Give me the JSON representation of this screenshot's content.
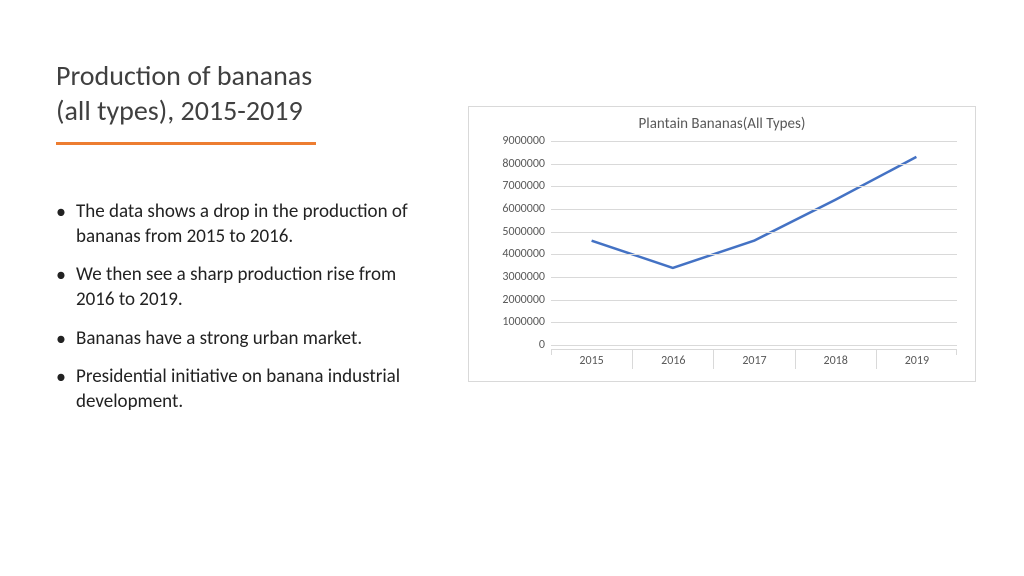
{
  "title": {
    "line1": "Production of bananas",
    "line2": "(all types), 2015-2019"
  },
  "accent_color": "#ed7d31",
  "bullets": [
    "The data shows a drop in the production of bananas from 2015 to 2016.",
    "We then see a sharp production rise from 2016 to 2019.",
    "Bananas have a strong urban market.",
    "Presidential initiative on banana industrial development."
  ],
  "chart": {
    "type": "line",
    "title": "Plantain Bananas(All Types)",
    "title_color": "#595959",
    "title_fontsize": 15,
    "categories": [
      "2015",
      "2016",
      "2017",
      "2018",
      "2019"
    ],
    "values": [
      4600000,
      3400000,
      4600000,
      6400000,
      8300000
    ],
    "ylim": [
      0,
      9000000
    ],
    "ytick_step": 1000000,
    "grid_color": "#d9d9d9",
    "line_color": "#4472c4",
    "line_width": 2.5,
    "label_color": "#595959",
    "label_fontsize": 12,
    "background_color": "#ffffff",
    "border_color": "#d9d9d9"
  }
}
